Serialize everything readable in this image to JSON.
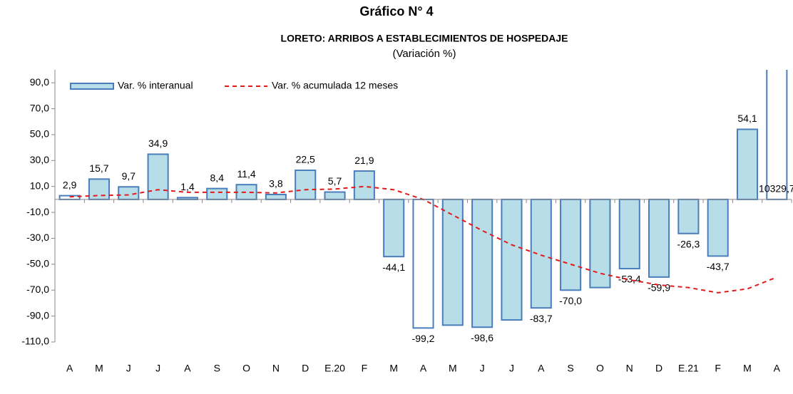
{
  "chart_data": {
    "type": "bar",
    "title": "Gráfico N° 4",
    "subtitle": "LORETO: ARRIBOS A ESTABLECIMIENTOS DE HOSPEDAJE",
    "note": "(Variación %)",
    "categories": [
      "A",
      "M",
      "J",
      "J",
      "A",
      "S",
      "O",
      "N",
      "D",
      "E.20",
      "F",
      "M",
      "A",
      "M",
      "J",
      "J",
      "A",
      "S",
      "O",
      "N",
      "D",
      "E.21",
      "F",
      "M",
      "A"
    ],
    "series": [
      {
        "name": "Var. % interanual",
        "type": "bar",
        "color": "#b7dde8",
        "stroke": "#4a7ebb",
        "colors": [
          "#ffffff",
          "#b7dde8",
          "#b7dde8",
          "#b7dde8",
          "#b7dde8",
          "#b7dde8",
          "#b7dde8",
          "#b7dde8",
          "#b7dde8",
          "#b7dde8",
          "#b7dde8",
          "#b7dde8",
          "#ffffff",
          "#b7dde8",
          "#b7dde8",
          "#b7dde8",
          "#b7dde8",
          "#b7dde8",
          "#b7dde8",
          "#b7dde8",
          "#b7dde8",
          "#b7dde8",
          "#b7dde8",
          "#b7dde8",
          "#ffffff"
        ],
        "values": [
          2.9,
          15.7,
          9.7,
          34.9,
          1.4,
          8.4,
          11.4,
          3.8,
          22.5,
          5.7,
          21.9,
          -44.1,
          -99.2,
          -97,
          -98.6,
          -93,
          -83.7,
          -70.0,
          -68,
          -53.4,
          -59.9,
          -26.3,
          -43.7,
          54.1,
          10329.7
        ],
        "value_labels": [
          "2,9",
          "15,7",
          "9,7",
          "34,9",
          "1,4",
          "8,4",
          "11,4",
          "3,8",
          "22,5",
          "5,7",
          "21,9",
          "-44,1",
          "-99,2",
          null,
          "-98,6",
          null,
          "-83,7",
          "-70,0",
          null,
          "-53,4",
          "-59,9",
          "-26,3",
          "-43,7",
          "54,1",
          "10329,7"
        ]
      },
      {
        "name": "Var. % acumulada 12 meses",
        "type": "line",
        "color": "#e31a1c",
        "dashed": true,
        "values": [
          2,
          3,
          3.5,
          7.5,
          5.5,
          5.5,
          5.5,
          5,
          7.5,
          8,
          10,
          7.5,
          0,
          -12,
          -24,
          -35,
          -43,
          -50,
          -57,
          -62,
          -66,
          -68,
          -72,
          -69,
          -60
        ]
      }
    ],
    "ylim": [
      -110,
      100
    ],
    "yticks": [
      {
        "value": -110,
        "label": "-110,0"
      },
      {
        "value": -90,
        "label": "-90,0"
      },
      {
        "value": -70,
        "label": "-70,0"
      },
      {
        "value": -50,
        "label": "-50,0"
      },
      {
        "value": -30,
        "label": "-30,0"
      },
      {
        "value": -10,
        "label": "-10,0"
      },
      {
        "value": 10,
        "label": "10,0"
      },
      {
        "value": 30,
        "label": "30,0"
      },
      {
        "value": 50,
        "label": "50,0"
      },
      {
        "value": 70,
        "label": "70,0"
      },
      {
        "value": 90,
        "label": "90,0"
      }
    ],
    "grid": false,
    "legend": "top-left"
  }
}
